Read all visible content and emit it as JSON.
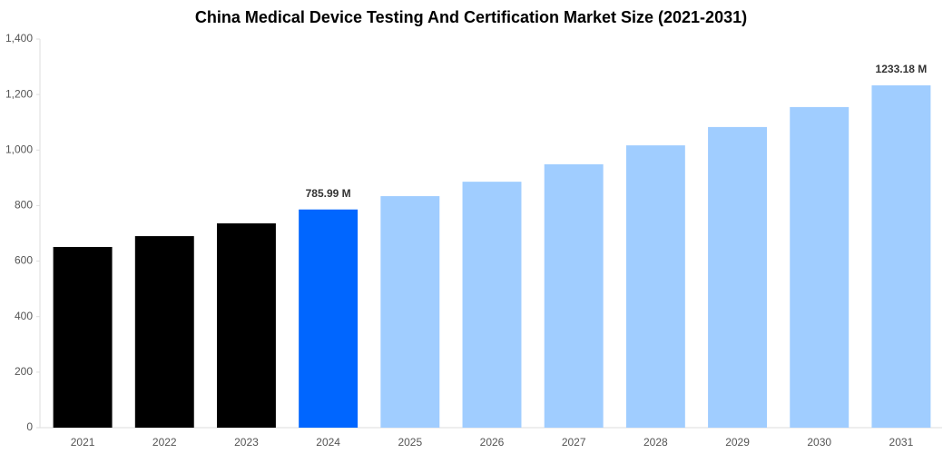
{
  "chart_data": {
    "type": "bar",
    "title": "China Medical Device Testing And Certification Market Size (2021-2031)",
    "categories": [
      "2021",
      "2022",
      "2023",
      "2024",
      "2025",
      "2026",
      "2027",
      "2028",
      "2029",
      "2030",
      "2031"
    ],
    "values": [
      651,
      690,
      736,
      785.99,
      834,
      886,
      949,
      1017,
      1083,
      1155,
      1233.18
    ],
    "value_labels": [
      null,
      null,
      null,
      "785.99 M",
      null,
      null,
      null,
      null,
      null,
      null,
      "1233.18 M"
    ],
    "colors": [
      "#000000",
      "#000000",
      "#000000",
      "#0066ff",
      "#a0cdff",
      "#a0cdff",
      "#a0cdff",
      "#a0cdff",
      "#a0cdff",
      "#a0cdff",
      "#a0cdff"
    ],
    "ylim": [
      0,
      1400
    ],
    "yticks": [
      0,
      200,
      400,
      600,
      800,
      {
        "value": 1000,
        "label": "1,000"
      },
      {
        "value": 1200,
        "label": "1,200"
      },
      {
        "value": 1400,
        "label": "1,400"
      }
    ],
    "grid": false
  }
}
